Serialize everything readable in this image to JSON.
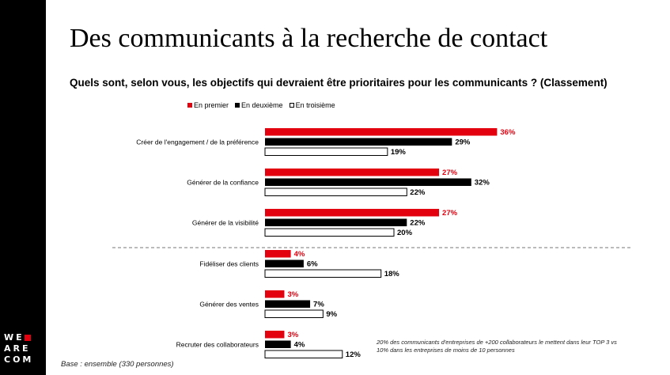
{
  "slide": {
    "title": "Des communicants à la recherche de contact",
    "subtitle": "Quels sont, selon vous, les objectifs qui devraient être prioritaires pour les communicants ? (Classement)",
    "note_line1": "20% des communicants d'entreprises de +200 collaborateurs le mettent dans leur TOP 3 vs",
    "note_line2": "10% dans les entreprises de moins de 10 personnes",
    "base": "Base : ensemble (330 personnes)",
    "logo": [
      "WE",
      "ARE",
      "COM"
    ]
  },
  "chart_data": {
    "type": "bar",
    "orientation": "horizontal",
    "categories": [
      "Créer de l'engagement / de la préférence",
      "Générer de la confiance",
      "Générer de la visibilité",
      "Fidéliser des clients",
      "Générer des ventes",
      "Recruter des collaborateurs"
    ],
    "series": [
      {
        "name": "En premier",
        "values": [
          36,
          27,
          27,
          4,
          3,
          3
        ],
        "labels": [
          "36%",
          "27%",
          "27%",
          "4%",
          "3%",
          "3%"
        ],
        "color": "#e3000f",
        "label_color": "#e3000f"
      },
      {
        "name": "En deuxième",
        "values": [
          29,
          32,
          22,
          6,
          7,
          4
        ],
        "labels": [
          "29%",
          "32%",
          "22%",
          "6%",
          "7%",
          "4%"
        ],
        "color": "#000000",
        "label_color": "#000000"
      },
      {
        "name": "En troisième",
        "values": [
          19,
          22,
          20,
          18,
          9,
          12
        ],
        "labels": [
          "19%",
          "22%",
          "20%",
          "18%",
          "9%",
          "12%"
        ],
        "color": "#ffffff",
        "label_color": "#000000"
      }
    ],
    "separator_after_category": 2,
    "legend_position": "top-left",
    "grid": false
  }
}
